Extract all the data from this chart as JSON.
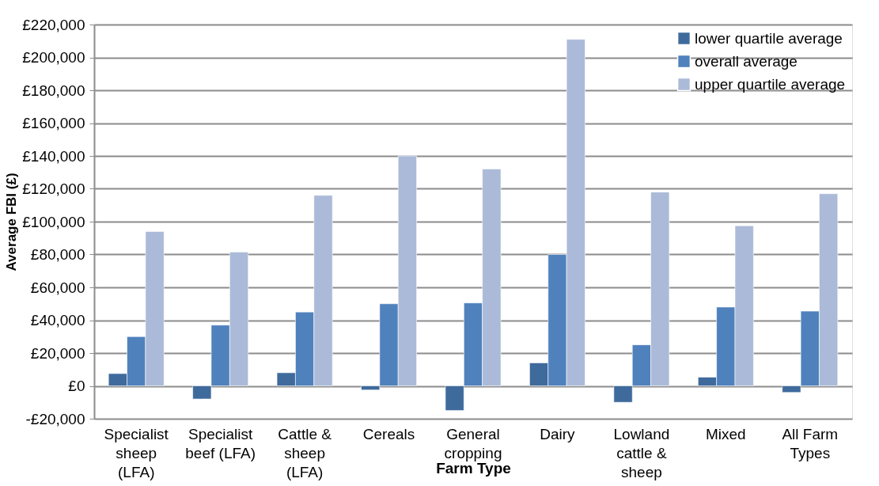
{
  "chart_data": {
    "type": "bar",
    "categories": [
      "Specialist sheep (LFA)",
      "Specialist beef (LFA)",
      "Cattle & sheep (LFA)",
      "Cereals",
      "General cropping",
      "Dairy",
      "Lowland cattle & sheep",
      "Mixed",
      "All Farm Types"
    ],
    "series": [
      {
        "name": "lower quartile average",
        "color": "#3f6a9c",
        "values": [
          7500,
          -8000,
          8000,
          -2500,
          -15000,
          14000,
          -10000,
          5300,
          -4000
        ]
      },
      {
        "name": "overall average",
        "color": "#4f81bd",
        "values": [
          30000,
          37000,
          45000,
          50000,
          50500,
          80000,
          25000,
          48000,
          45500
        ]
      },
      {
        "name": "upper quartile average",
        "color": "#abbad8",
        "values": [
          94000,
          81500,
          116000,
          140000,
          132000,
          211000,
          118000,
          97500,
          117000
        ]
      }
    ],
    "xlabel": "Farm Type",
    "ylabel": "Average FBI (£)",
    "ylim": [
      -20000,
      220000
    ],
    "yticks": [
      {
        "value": -20000,
        "label": "-£20,000"
      },
      {
        "value": 0,
        "label": "£0"
      },
      {
        "value": 20000,
        "label": "£20,000"
      },
      {
        "value": 40000,
        "label": "£40,000"
      },
      {
        "value": 60000,
        "label": "£60,000"
      },
      {
        "value": 80000,
        "label": "£80,000"
      },
      {
        "value": 100000,
        "label": "£100,000"
      },
      {
        "value": 120000,
        "label": "£120,000"
      },
      {
        "value": 140000,
        "label": "£140,000"
      },
      {
        "value": 160000,
        "label": "£160,000"
      },
      {
        "value": 180000,
        "label": "£180,000"
      },
      {
        "value": 200000,
        "label": "£200,000"
      },
      {
        "value": 220000,
        "label": "£220,000"
      }
    ],
    "grid": "y",
    "legend": "top right"
  }
}
